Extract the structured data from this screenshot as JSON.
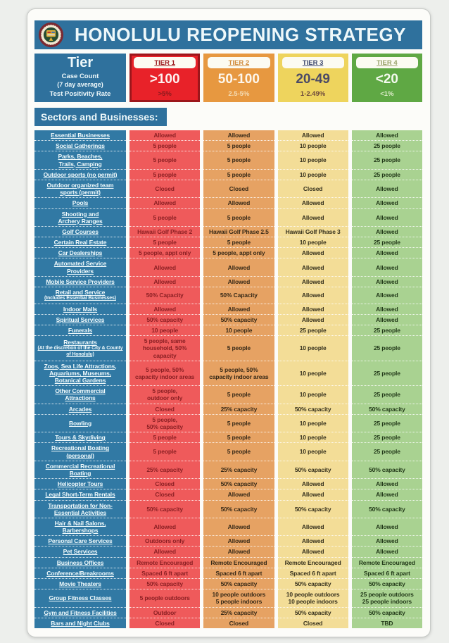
{
  "header": {
    "title": "HONOLULU REOPENING STRATEGY",
    "seal_name": "city-and-county-of-honolulu-seal"
  },
  "theme": {
    "banner_bg": "#2f719d",
    "sector_bg": "#3179a4",
    "card_bg": "#fcfcf9",
    "page_bg": "#edefec"
  },
  "tier_table": {
    "corner": {
      "title": "Tier",
      "case_count_label": "Case Count",
      "case_count_sub": "(7 day average)",
      "positivity_label": "Test Positivity Rate"
    },
    "tiers": [
      {
        "name": "TIER 1",
        "case_count": ">100",
        "positivity": ">5%",
        "bg": "#e82229",
        "border": "#9c161b",
        "name_color": "#9c1b1f",
        "case_color": "#fdf2f0",
        "rate_color": "#8a191d"
      },
      {
        "name": "TIER 2",
        "case_count": "50-100",
        "positivity": "2.5-5%",
        "bg": "#e79840",
        "border": "",
        "name_color": "#d18c3c",
        "case_color": "#fdf6ec",
        "rate_color": "#f4dcb4"
      },
      {
        "name": "TIER 3",
        "case_count": "20-49",
        "positivity": "1-2.49%",
        "bg": "#eed45d",
        "border": "",
        "name_color": "#3f4a70",
        "case_color": "#4b4a66",
        "rate_color": "#6e4a3c"
      },
      {
        "name": "TIER 4",
        "case_count": "<20",
        "positivity": "<1%",
        "bg": "#5fa844",
        "border": "",
        "name_color": "#9aa36b",
        "case_color": "#f4faee",
        "rate_color": "#dcecc8"
      }
    ]
  },
  "sectors_heading": "Sectors and Businesses:",
  "columns": [
    {
      "bg": "#ef5a5b",
      "text": "#8c2024"
    },
    {
      "bg": "#e6a263",
      "text": "#382a18"
    },
    {
      "bg": "#f3dd97",
      "text": "#36311e"
    },
    {
      "bg": "#a9d291",
      "text": "#233a1a"
    }
  ],
  "rows": [
    {
      "sector": "Essential Businesses",
      "sub": "",
      "values": [
        "Allowed",
        "Allowed",
        "Allowed",
        "Allowed"
      ]
    },
    {
      "sector": "Social Gatherings",
      "sub": "",
      "values": [
        "5 people",
        "5 people",
        "10 people",
        "25 people"
      ]
    },
    {
      "sector": "Parks, Beaches,\nTrails, Camping",
      "sub": "",
      "values": [
        "5 people",
        "5 people",
        "10 people",
        "25 people"
      ]
    },
    {
      "sector": "Outdoor sports (no permit)",
      "sub": "",
      "values": [
        "5 people",
        "5 people",
        "10 people",
        "25 people"
      ]
    },
    {
      "sector": "Outdoor organized team\nsports (permit)",
      "sub": "",
      "values": [
        "Closed",
        "Closed",
        "Closed",
        "Allowed"
      ]
    },
    {
      "sector": "Pools",
      "sub": "",
      "values": [
        "Allowed",
        "Allowed",
        "Allowed",
        "Allowed"
      ]
    },
    {
      "sector": "Shooting and\nArchery Ranges",
      "sub": "",
      "values": [
        "5 people",
        "5 people",
        "Allowed",
        "Allowed"
      ]
    },
    {
      "sector": "Golf Courses",
      "sub": "",
      "values": [
        "Hawaii Golf Phase 2",
        "Hawaii Golf Phase 2.5",
        "Hawaii Golf Phase 3",
        "Allowed"
      ]
    },
    {
      "sector": "Certain Real Estate",
      "sub": "",
      "values": [
        "5 people",
        "5 people",
        "10 people",
        "25 people"
      ]
    },
    {
      "sector": "Car Dealerships",
      "sub": "",
      "values": [
        "5 people, appt only",
        "5 people, appt only",
        "Allowed",
        "Allowed"
      ]
    },
    {
      "sector": "Automated Service\nProviders",
      "sub": "",
      "values": [
        "Allowed",
        "Allowed",
        "Allowed",
        "Allowed"
      ]
    },
    {
      "sector": "Mobile Service Providers",
      "sub": "",
      "values": [
        "Allowed",
        "Allowed",
        "Allowed",
        "Allowed"
      ]
    },
    {
      "sector": "Retail and Service",
      "sub": "(Includes Essential Businesses)",
      "values": [
        "50% Capacity",
        "50% Capacity",
        "Allowed",
        "Allowed"
      ]
    },
    {
      "sector": "Indoor Malls",
      "sub": "",
      "values": [
        "Allowed",
        "Allowed",
        "Allowed",
        "Allowed"
      ]
    },
    {
      "sector": "Spiritual Services",
      "sub": "",
      "values": [
        "50% capacity",
        "50% capacity",
        "Allowed",
        "Allowed"
      ]
    },
    {
      "sector": "Funerals",
      "sub": "",
      "values": [
        "10 people",
        "10 people",
        "25 people",
        "25 people"
      ]
    },
    {
      "sector": "Restaurants",
      "sub": "(At the discretion of the City & County of Honolulu)",
      "values": [
        "5 people, same\nhousehold, 50% capacity",
        "5 people",
        "10 people",
        "25 people"
      ]
    },
    {
      "sector": "Zoos, Sea Life Attractions,\nAquariums, Museums,\nBotanical Gardens",
      "sub": "",
      "values": [
        "5 people, 50%\ncapacity indoor areas",
        "5 people, 50%\ncapacity indoor areas",
        "10 people",
        "25 people"
      ]
    },
    {
      "sector": "Other Commercial\nAttractions",
      "sub": "",
      "values": [
        "5 people,\noutdoor only",
        "5 people",
        "10 people",
        "25 people"
      ]
    },
    {
      "sector": "Arcades",
      "sub": "",
      "values": [
        "Closed",
        "25% capacity",
        "50% capacity",
        "50% capacity"
      ]
    },
    {
      "sector": "Bowling",
      "sub": "",
      "values": [
        "5 people,\n50% capacity",
        "5 people",
        "10 people",
        "25 people"
      ]
    },
    {
      "sector": "Tours & Skydiving",
      "sub": "",
      "values": [
        "5 people",
        "5 people",
        "10 people",
        "25 people"
      ]
    },
    {
      "sector": "Recreational Boating\n(personal)",
      "sub": "",
      "values": [
        "5 people",
        "5 people",
        "10 people",
        "25 people"
      ]
    },
    {
      "sector": "Commercial Recreational\nBoating",
      "sub": "",
      "values": [
        "25% capacity",
        "25% capacity",
        "50% capacity",
        "50% capacity"
      ]
    },
    {
      "sector": "Helicopter Tours",
      "sub": "",
      "values": [
        "Closed",
        "50% capacity",
        "Allowed",
        "Allowed"
      ]
    },
    {
      "sector": "Legal Short-Term Rentals",
      "sub": "",
      "values": [
        "Closed",
        "Allowed",
        "Allowed",
        "Allowed"
      ]
    },
    {
      "sector": "Transportation for Non-\nEssential Activities",
      "sub": "",
      "values": [
        "50% capacity",
        "50% capacity",
        "50% capacity",
        "50% capacity"
      ]
    },
    {
      "sector": "Hair & Nail Salons,\nBarbershops",
      "sub": "",
      "values": [
        "Allowed",
        "Allowed",
        "Allowed",
        "Allowed"
      ]
    },
    {
      "sector": "Personal Care Services",
      "sub": "",
      "values": [
        "Outdoors only",
        "Allowed",
        "Allowed",
        "Allowed"
      ]
    },
    {
      "sector": "Pet Services",
      "sub": "",
      "values": [
        "Allowed",
        "Allowed",
        "Allowed",
        "Allowed"
      ]
    },
    {
      "sector": "Business Offices",
      "sub": "",
      "values": [
        "Remote Encouraged",
        "Remote Encouraged",
        "Remote Encouraged",
        "Remote Encouraged"
      ]
    },
    {
      "sector": "Conference/Breakrooms",
      "sub": "",
      "values": [
        "Spaced 6 ft apart",
        "Spaced 6 ft apart",
        "Spaced 6 ft apart",
        "Spaced 6 ft apart"
      ]
    },
    {
      "sector": "Movie Theaters",
      "sub": "",
      "values": [
        "50% capacity",
        "50% capacity",
        "50% capacity",
        "50% capacity"
      ]
    },
    {
      "sector": "Group Fitness Classes",
      "sub": "",
      "values": [
        "5 people outdoors",
        "10 people outdoors\n5 people indoors",
        "10 people outdoors\n10 people indoors",
        "25 people outdoors\n25 people indoors"
      ]
    },
    {
      "sector": "Gym and Fitness Facilities",
      "sub": "",
      "values": [
        "Outdoor",
        "25% capacity",
        "50% capacity",
        "50% capacity"
      ]
    },
    {
      "sector": "Bars and Night Clubs",
      "sub": "",
      "values": [
        "Closed",
        "Closed",
        "Closed",
        "TBD"
      ]
    }
  ]
}
